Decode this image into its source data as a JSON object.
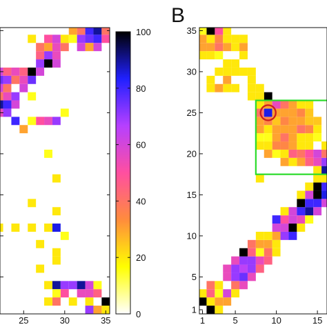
{
  "panel_label": "B",
  "colorbar": {
    "ticks": [
      0,
      20,
      40,
      60,
      80,
      100
    ],
    "colors": [
      "#ffffff",
      "#ffff00",
      "#ff8c3c",
      "#ff4fa0",
      "#b640ff",
      "#2020ff",
      "#000000"
    ]
  },
  "chart_data": [
    {
      "type": "heatmap",
      "panel": "left (cropped)",
      "xlim": [
        21,
        35
      ],
      "ylim": [
        1,
        35
      ],
      "xticks": [
        25,
        30,
        35
      ],
      "grid": false,
      "cells": [
        [
          22,
          28,
          60
        ],
        [
          23,
          27,
          55
        ],
        [
          24,
          26,
          60
        ],
        [
          22,
          27,
          40
        ],
        [
          23,
          28,
          40
        ],
        [
          21,
          26,
          70
        ],
        [
          21,
          27,
          85
        ],
        [
          22,
          26,
          90
        ],
        [
          23,
          26,
          80
        ],
        [
          24,
          27,
          70
        ],
        [
          22,
          25,
          55
        ],
        [
          23,
          25,
          70
        ],
        [
          21,
          28,
          100
        ],
        [
          21,
          29,
          60
        ],
        [
          22,
          29,
          75
        ],
        [
          22,
          30,
          60
        ],
        [
          23,
          30,
          45
        ],
        [
          23,
          29,
          70
        ],
        [
          24,
          30,
          55
        ],
        [
          24,
          29,
          40
        ],
        [
          21,
          24,
          20
        ],
        [
          25,
          29,
          55
        ],
        [
          25,
          28,
          60
        ],
        [
          26,
          27,
          15
        ],
        [
          25,
          30,
          45
        ],
        [
          26,
          29,
          75
        ],
        [
          26,
          30,
          100
        ],
        [
          27,
          30,
          60
        ],
        [
          27,
          31,
          70
        ],
        [
          28,
          31,
          100
        ],
        [
          28,
          32,
          70
        ],
        [
          29,
          31,
          60
        ],
        [
          29,
          32,
          55
        ],
        [
          27,
          32,
          45
        ],
        [
          27,
          33,
          40
        ],
        [
          28,
          33,
          30
        ],
        [
          28,
          34,
          50
        ],
        [
          29,
          33,
          55
        ],
        [
          29,
          34,
          60
        ],
        [
          30,
          33,
          40
        ],
        [
          30,
          34,
          20
        ],
        [
          26,
          34,
          20
        ],
        [
          31,
          34,
          15
        ],
        [
          31,
          35,
          30
        ],
        [
          32,
          34,
          70
        ],
        [
          33,
          34,
          75
        ],
        [
          33,
          35,
          80
        ],
        [
          34,
          35,
          90
        ],
        [
          35,
          35,
          40
        ],
        [
          34,
          34,
          80
        ],
        [
          34,
          33,
          60
        ],
        [
          35,
          34,
          50
        ],
        [
          33,
          33,
          30
        ],
        [
          32,
          33,
          60
        ],
        [
          32,
          35,
          40
        ],
        [
          24,
          24,
          80
        ],
        [
          25,
          23,
          30
        ],
        [
          27,
          24,
          50
        ],
        [
          28,
          24,
          55
        ],
        [
          29,
          24,
          70
        ],
        [
          26,
          24,
          15
        ],
        [
          30,
          25,
          15
        ],
        [
          21,
          21,
          20
        ],
        [
          28,
          20,
          15
        ],
        [
          29,
          17,
          20
        ],
        [
          26,
          14,
          20
        ],
        [
          29,
          13,
          20
        ],
        [
          22,
          11,
          20
        ],
        [
          24,
          11,
          20
        ],
        [
          26,
          11,
          20
        ],
        [
          28,
          11,
          20
        ],
        [
          29,
          11,
          85
        ],
        [
          30,
          10,
          15
        ],
        [
          27,
          9,
          20
        ],
        [
          29,
          8,
          20
        ],
        [
          29,
          7,
          20
        ],
        [
          27,
          6,
          20
        ],
        [
          28,
          4,
          20
        ],
        [
          29,
          4,
          90
        ],
        [
          30,
          4,
          70
        ],
        [
          31,
          4,
          70
        ],
        [
          32,
          4,
          90
        ],
        [
          33,
          4,
          60
        ],
        [
          34,
          4,
          15
        ],
        [
          29,
          3,
          15
        ],
        [
          30,
          3,
          50
        ],
        [
          32,
          3,
          55
        ],
        [
          33,
          3,
          55
        ],
        [
          34,
          3,
          45
        ],
        [
          33,
          2,
          20
        ],
        [
          29,
          2,
          40
        ],
        [
          31,
          2,
          20
        ],
        [
          35,
          2,
          100
        ],
        [
          35,
          1,
          20
        ],
        [
          33,
          1,
          70
        ],
        [
          34,
          1,
          30
        ],
        [
          28,
          2,
          20
        ]
      ]
    },
    {
      "type": "heatmap",
      "panel": "B",
      "xlim": [
        1,
        16
      ],
      "ylim": [
        1,
        35
      ],
      "xticks": [
        1,
        5,
        10,
        15
      ],
      "yticks": [
        1,
        5,
        10,
        15,
        20,
        25,
        30,
        35
      ],
      "grid": false,
      "highlights": [
        {
          "shape": "rectangle",
          "color": "#2adb2a",
          "x": [
            8,
            16
          ],
          "y": [
            18,
            26
          ]
        },
        {
          "shape": "circle",
          "color": "#cc1f1f",
          "x": 9,
          "y": 25
        }
      ],
      "cells": [
        [
          1,
          2,
          100
        ],
        [
          2,
          1,
          100
        ],
        [
          1,
          3,
          20
        ],
        [
          2,
          3,
          45
        ],
        [
          2,
          2,
          20
        ],
        [
          3,
          1,
          20
        ],
        [
          3,
          2,
          30
        ],
        [
          3,
          3,
          15
        ],
        [
          2,
          4,
          40
        ],
        [
          3,
          4,
          20
        ],
        [
          4,
          3,
          60
        ],
        [
          4,
          2,
          30
        ],
        [
          5,
          3,
          20
        ],
        [
          5,
          4,
          40
        ],
        [
          4,
          5,
          55
        ],
        [
          5,
          5,
          70
        ],
        [
          6,
          4,
          55
        ],
        [
          4,
          6,
          55
        ],
        [
          5,
          6,
          70
        ],
        [
          6,
          5,
          75
        ],
        [
          6,
          6,
          65
        ],
        [
          7,
          5,
          55
        ],
        [
          5,
          7,
          55
        ],
        [
          6,
          7,
          70
        ],
        [
          7,
          6,
          70
        ],
        [
          7,
          7,
          70
        ],
        [
          8,
          6,
          45
        ],
        [
          6,
          8,
          100
        ],
        [
          7,
          8,
          45
        ],
        [
          8,
          7,
          55
        ],
        [
          8,
          8,
          15
        ],
        [
          9,
          7,
          45
        ],
        [
          7,
          9,
          40
        ],
        [
          8,
          9,
          30
        ],
        [
          9,
          8,
          40
        ],
        [
          9,
          9,
          30
        ],
        [
          10,
          8,
          20
        ],
        [
          8,
          10,
          20
        ],
        [
          9,
          10,
          20
        ],
        [
          10,
          9,
          20
        ],
        [
          10,
          10,
          30
        ],
        [
          11,
          10,
          70
        ],
        [
          10,
          11,
          60
        ],
        [
          11,
          11,
          60
        ],
        [
          10,
          12,
          80
        ],
        [
          12,
          10,
          80
        ],
        [
          11,
          12,
          50
        ],
        [
          12,
          11,
          100
        ],
        [
          12,
          12,
          60
        ],
        [
          13,
          11,
          20
        ],
        [
          13,
          12,
          55
        ],
        [
          12,
          13,
          60
        ],
        [
          13,
          13,
          80
        ],
        [
          11,
          13,
          20
        ],
        [
          14,
          12,
          15
        ],
        [
          13,
          14,
          100
        ],
        [
          14,
          13,
          90
        ],
        [
          14,
          14,
          80
        ],
        [
          15,
          13,
          60
        ],
        [
          15,
          14,
          80
        ],
        [
          14,
          15,
          60
        ],
        [
          15,
          15,
          100
        ],
        [
          16,
          14,
          60
        ],
        [
          16,
          15,
          85
        ],
        [
          15,
          16,
          100
        ],
        [
          16,
          16,
          80
        ],
        [
          13,
          15,
          20
        ],
        [
          14,
          16,
          20
        ],
        [
          16,
          17,
          20
        ],
        [
          15,
          17,
          20
        ],
        [
          8,
          17,
          20
        ],
        [
          9,
          20,
          30
        ],
        [
          10,
          21,
          35
        ],
        [
          11,
          21,
          35
        ],
        [
          12,
          21,
          30
        ],
        [
          13,
          21,
          20
        ],
        [
          14,
          21,
          20
        ],
        [
          15,
          20,
          60
        ],
        [
          16,
          20,
          40
        ],
        [
          13,
          20,
          40
        ],
        [
          14,
          20,
          50
        ],
        [
          10,
          20,
          15
        ],
        [
          12,
          20,
          45
        ],
        [
          11,
          20,
          20
        ],
        [
          16,
          19,
          70
        ],
        [
          15,
          19,
          55
        ],
        [
          14,
          19,
          45
        ],
        [
          11,
          19,
          30
        ],
        [
          13,
          19,
          30
        ],
        [
          12,
          19,
          20
        ],
        [
          9,
          21,
          20
        ],
        [
          8,
          21,
          20
        ],
        [
          16,
          18,
          90
        ],
        [
          15,
          18,
          20
        ],
        [
          8,
          22,
          15
        ],
        [
          9,
          22,
          15
        ],
        [
          10,
          22,
          30
        ],
        [
          11,
          22,
          40
        ],
        [
          12,
          22,
          30
        ],
        [
          13,
          22,
          20
        ],
        [
          14,
          22,
          20
        ],
        [
          15,
          22,
          15
        ],
        [
          16,
          21,
          20
        ],
        [
          8,
          23,
          30
        ],
        [
          9,
          23,
          20
        ],
        [
          10,
          23,
          30
        ],
        [
          11,
          23,
          30
        ],
        [
          12,
          23,
          30
        ],
        [
          13,
          23,
          40
        ],
        [
          14,
          23,
          35
        ],
        [
          15,
          23,
          20
        ],
        [
          8,
          24,
          30
        ],
        [
          9,
          24,
          35
        ],
        [
          10,
          24,
          25
        ],
        [
          11,
          24,
          35
        ],
        [
          12,
          24,
          30
        ],
        [
          13,
          24,
          30
        ],
        [
          14,
          24,
          25
        ],
        [
          15,
          24,
          25
        ],
        [
          8,
          25,
          40
        ],
        [
          9,
          25,
          85
        ],
        [
          10,
          25,
          30
        ],
        [
          11,
          25,
          30
        ],
        [
          12,
          25,
          30
        ],
        [
          13,
          25,
          35
        ],
        [
          14,
          25,
          25
        ],
        [
          9,
          26,
          30
        ],
        [
          10,
          26,
          55
        ],
        [
          11,
          26,
          40
        ],
        [
          12,
          26,
          30
        ],
        [
          13,
          26,
          20
        ],
        [
          14,
          26,
          20
        ],
        [
          8,
          26,
          20
        ],
        [
          9,
          27,
          100
        ],
        [
          8,
          27,
          20
        ],
        [
          8,
          28,
          20
        ],
        [
          7,
          27,
          20
        ],
        [
          7,
          28,
          20
        ],
        [
          7,
          30,
          20
        ],
        [
          4,
          28,
          20
        ],
        [
          5,
          28,
          20
        ],
        [
          4,
          29,
          30
        ],
        [
          4,
          30,
          20
        ],
        [
          2,
          28,
          20
        ],
        [
          3,
          28,
          30
        ],
        [
          3,
          30,
          20
        ],
        [
          2,
          29,
          20
        ],
        [
          1,
          32,
          20
        ],
        [
          1,
          33,
          30
        ],
        [
          2,
          33,
          30
        ],
        [
          3,
          33,
          40
        ],
        [
          1,
          34,
          30
        ],
        [
          2,
          34,
          20
        ],
        [
          3,
          34,
          35
        ],
        [
          4,
          33,
          30
        ],
        [
          4,
          34,
          20
        ],
        [
          5,
          33,
          20
        ],
        [
          5,
          34,
          20
        ],
        [
          4,
          35,
          20
        ],
        [
          3,
          35,
          50
        ],
        [
          2,
          35,
          100
        ],
        [
          1,
          35,
          15
        ],
        [
          6,
          33,
          30
        ],
        [
          6,
          34,
          20
        ],
        [
          2,
          32,
          20
        ],
        [
          4,
          31,
          20
        ],
        [
          5,
          31,
          20
        ],
        [
          3,
          32,
          15
        ],
        [
          6,
          32,
          20
        ],
        [
          5,
          30,
          20
        ],
        [
          6,
          30,
          20
        ],
        [
          7,
          29,
          20
        ]
      ]
    }
  ]
}
